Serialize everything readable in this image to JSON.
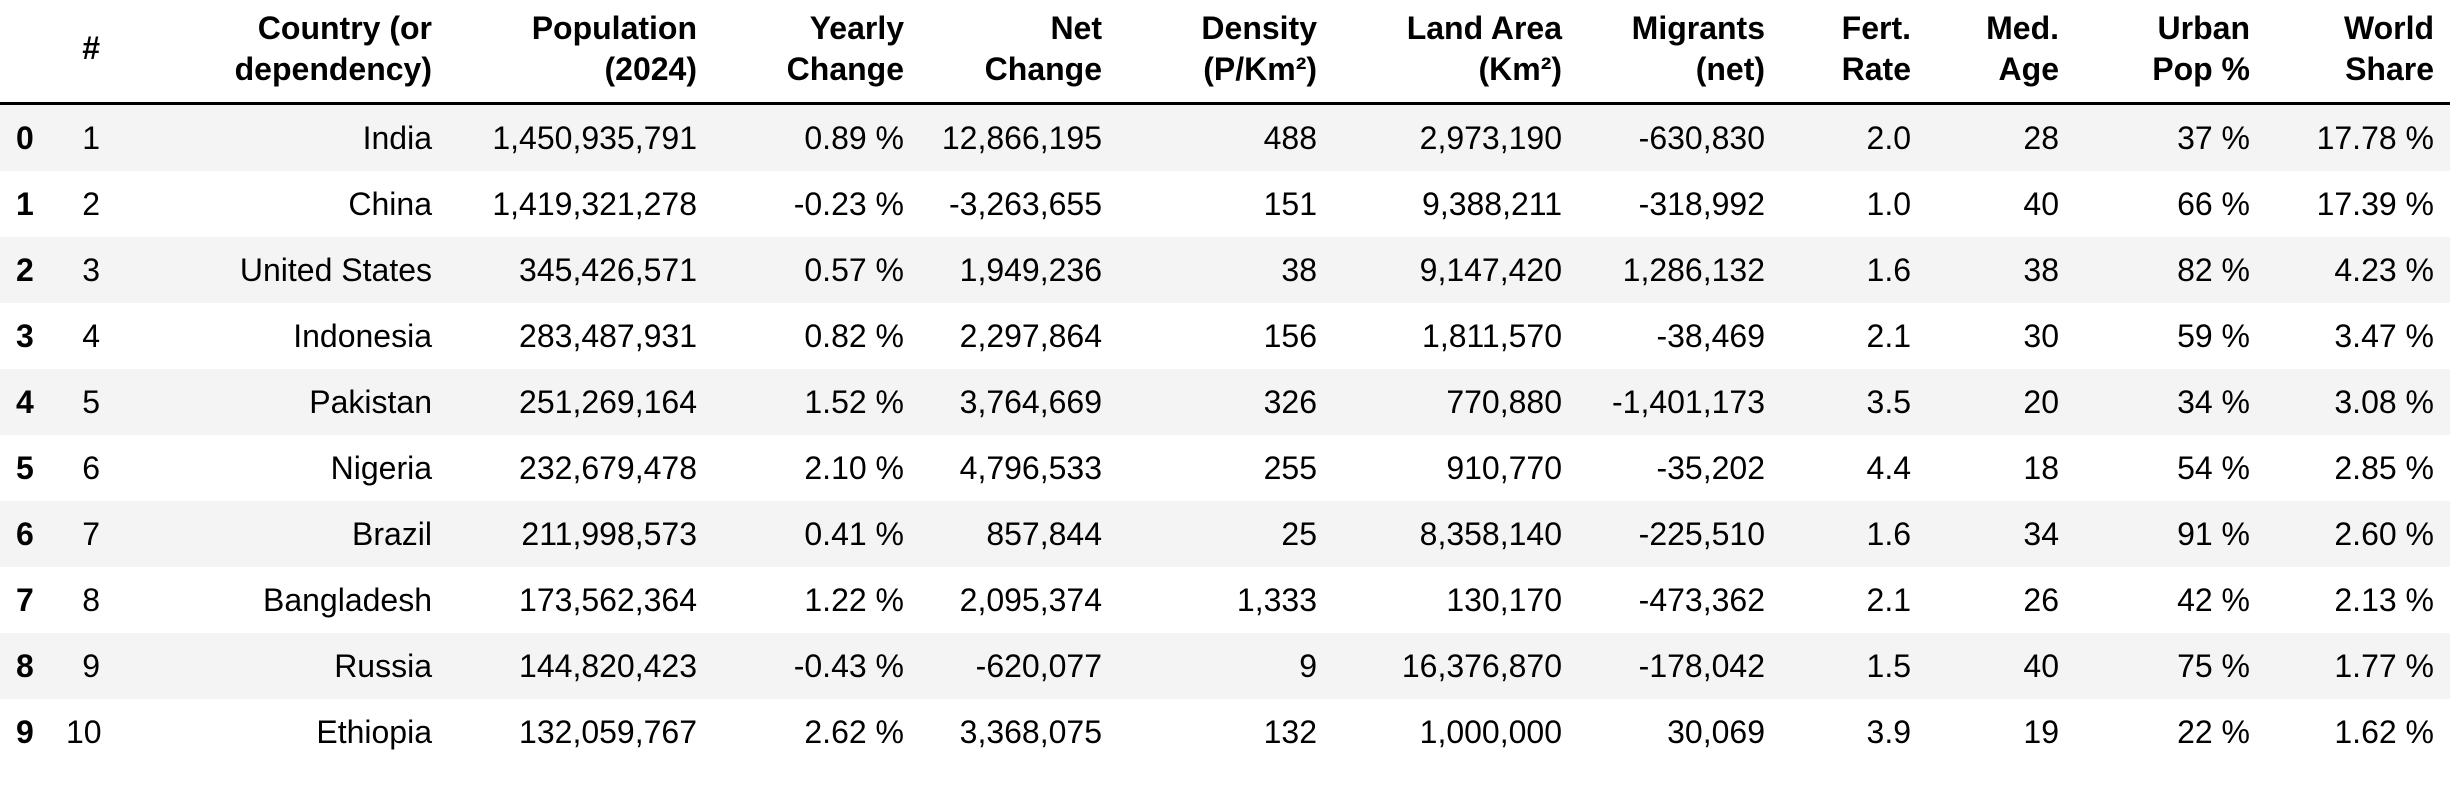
{
  "table": {
    "index_header": "",
    "columns": [
      {
        "key": "rank",
        "label": "#"
      },
      {
        "key": "country",
        "label": "Country (or dependency)"
      },
      {
        "key": "population",
        "label": "Population (2024)"
      },
      {
        "key": "yearly-change",
        "label": "Yearly Change"
      },
      {
        "key": "net-change",
        "label": "Net Change"
      },
      {
        "key": "density",
        "label": "Density (P/Km²)"
      },
      {
        "key": "land-area",
        "label": "Land Area (Km²)"
      },
      {
        "key": "migrants",
        "label": "Migrants (net)"
      },
      {
        "key": "fert-rate",
        "label": "Fert. Rate"
      },
      {
        "key": "med-age",
        "label": "Med. Age"
      },
      {
        "key": "urban-pop",
        "label": "Urban Pop %"
      },
      {
        "key": "world-share",
        "label": "World Share"
      }
    ],
    "rows": [
      {
        "index": "0",
        "cells": [
          "1",
          "India",
          "1,450,935,791",
          "0.89 %",
          "12,866,195",
          "488",
          "2,973,190",
          "-630,830",
          "2.0",
          "28",
          "37 %",
          "17.78 %"
        ]
      },
      {
        "index": "1",
        "cells": [
          "2",
          "China",
          "1,419,321,278",
          "-0.23 %",
          "-3,263,655",
          "151",
          "9,388,211",
          "-318,992",
          "1.0",
          "40",
          "66 %",
          "17.39 %"
        ]
      },
      {
        "index": "2",
        "cells": [
          "3",
          "United States",
          "345,426,571",
          "0.57 %",
          "1,949,236",
          "38",
          "9,147,420",
          "1,286,132",
          "1.6",
          "38",
          "82 %",
          "4.23 %"
        ]
      },
      {
        "index": "3",
        "cells": [
          "4",
          "Indonesia",
          "283,487,931",
          "0.82 %",
          "2,297,864",
          "156",
          "1,811,570",
          "-38,469",
          "2.1",
          "30",
          "59 %",
          "3.47 %"
        ]
      },
      {
        "index": "4",
        "cells": [
          "5",
          "Pakistan",
          "251,269,164",
          "1.52 %",
          "3,764,669",
          "326",
          "770,880",
          "-1,401,173",
          "3.5",
          "20",
          "34 %",
          "3.08 %"
        ]
      },
      {
        "index": "5",
        "cells": [
          "6",
          "Nigeria",
          "232,679,478",
          "2.10 %",
          "4,796,533",
          "255",
          "910,770",
          "-35,202",
          "4.4",
          "18",
          "54 %",
          "2.85 %"
        ]
      },
      {
        "index": "6",
        "cells": [
          "7",
          "Brazil",
          "211,998,573",
          "0.41 %",
          "857,844",
          "25",
          "8,358,140",
          "-225,510",
          "1.6",
          "34",
          "91 %",
          "2.60 %"
        ]
      },
      {
        "index": "7",
        "cells": [
          "8",
          "Bangladesh",
          "173,562,364",
          "1.22 %",
          "2,095,374",
          "1,333",
          "130,170",
          "-473,362",
          "2.1",
          "26",
          "42 %",
          "2.13 %"
        ]
      },
      {
        "index": "8",
        "cells": [
          "9",
          "Russia",
          "144,820,423",
          "-0.43 %",
          "-620,077",
          "9",
          "16,376,870",
          "-178,042",
          "1.5",
          "40",
          "75 %",
          "1.77 %"
        ]
      },
      {
        "index": "9",
        "cells": [
          "10",
          "Ethiopia",
          "132,059,767",
          "2.62 %",
          "3,368,075",
          "132",
          "1,000,000",
          "30,069",
          "3.9",
          "19",
          "22 %",
          "1.62 %"
        ]
      }
    ]
  },
  "colors": {
    "row_stripe": "#f4f4f4",
    "row_plain": "#ffffff",
    "header_border": "#000000",
    "text": "#000000",
    "background": "#ffffff"
  }
}
